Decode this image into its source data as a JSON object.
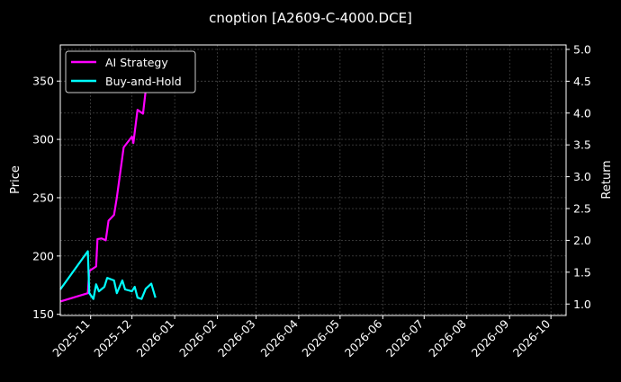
{
  "chart_data": {
    "type": "line",
    "title": "cnoption [A2609-C-4000.DCE]",
    "ylabel": "Price",
    "y2label": "Return",
    "xlim": [
      "2025-10-10",
      "2026-10-12"
    ],
    "ylim": [
      149,
      381
    ],
    "y2lim": [
      0.82,
      5.07
    ],
    "x_ticks": [
      "2025-11",
      "2025-12",
      "2026-01",
      "2026-02",
      "2026-03",
      "2026-04",
      "2026-05",
      "2026-06",
      "2026-07",
      "2026-08",
      "2026-09",
      "2026-10"
    ],
    "y_ticks": [
      150,
      200,
      250,
      300,
      350
    ],
    "y2_ticks": [
      "1.0",
      "1.5",
      "2.0",
      "2.5",
      "3.0",
      "3.5",
      "4.0",
      "4.5",
      "5.0"
    ],
    "grid": true,
    "legend_position": "upper-left",
    "background": "#000000",
    "series": [
      {
        "name": "AI Strategy",
        "axis": "right",
        "color": "#ff00ff",
        "x": [
          "2025-10-10",
          "2025-10-30",
          "2025-10-31",
          "2025-11-05",
          "2025-11-06",
          "2025-11-09",
          "2025-11-12",
          "2025-11-14",
          "2025-11-18",
          "2025-11-20",
          "2025-11-25",
          "2025-12-01",
          "2025-12-02",
          "2025-12-05",
          "2025-12-09",
          "2025-12-12",
          "2025-12-15"
        ],
        "y": [
          1.04,
          1.17,
          1.52,
          1.59,
          2.02,
          2.03,
          2.0,
          2.31,
          2.4,
          2.67,
          3.46,
          3.63,
          3.53,
          4.05,
          3.99,
          4.55,
          4.76
        ]
      },
      {
        "name": "Buy-and-Hold",
        "axis": "right",
        "color": "#00ffff",
        "x": [
          "2025-10-10",
          "2025-10-30",
          "2025-10-31",
          "2025-11-03",
          "2025-11-05",
          "2025-11-07",
          "2025-11-11",
          "2025-11-13",
          "2025-11-18",
          "2025-11-20",
          "2025-11-24",
          "2025-11-26",
          "2025-12-01",
          "2025-12-03",
          "2025-12-05",
          "2025-12-08",
          "2025-12-11",
          "2025-12-15",
          "2025-12-18"
        ],
        "y": [
          1.23,
          1.83,
          1.17,
          1.08,
          1.31,
          1.2,
          1.27,
          1.41,
          1.37,
          1.17,
          1.37,
          1.23,
          1.2,
          1.27,
          1.1,
          1.08,
          1.24,
          1.32,
          1.1
        ]
      }
    ]
  }
}
